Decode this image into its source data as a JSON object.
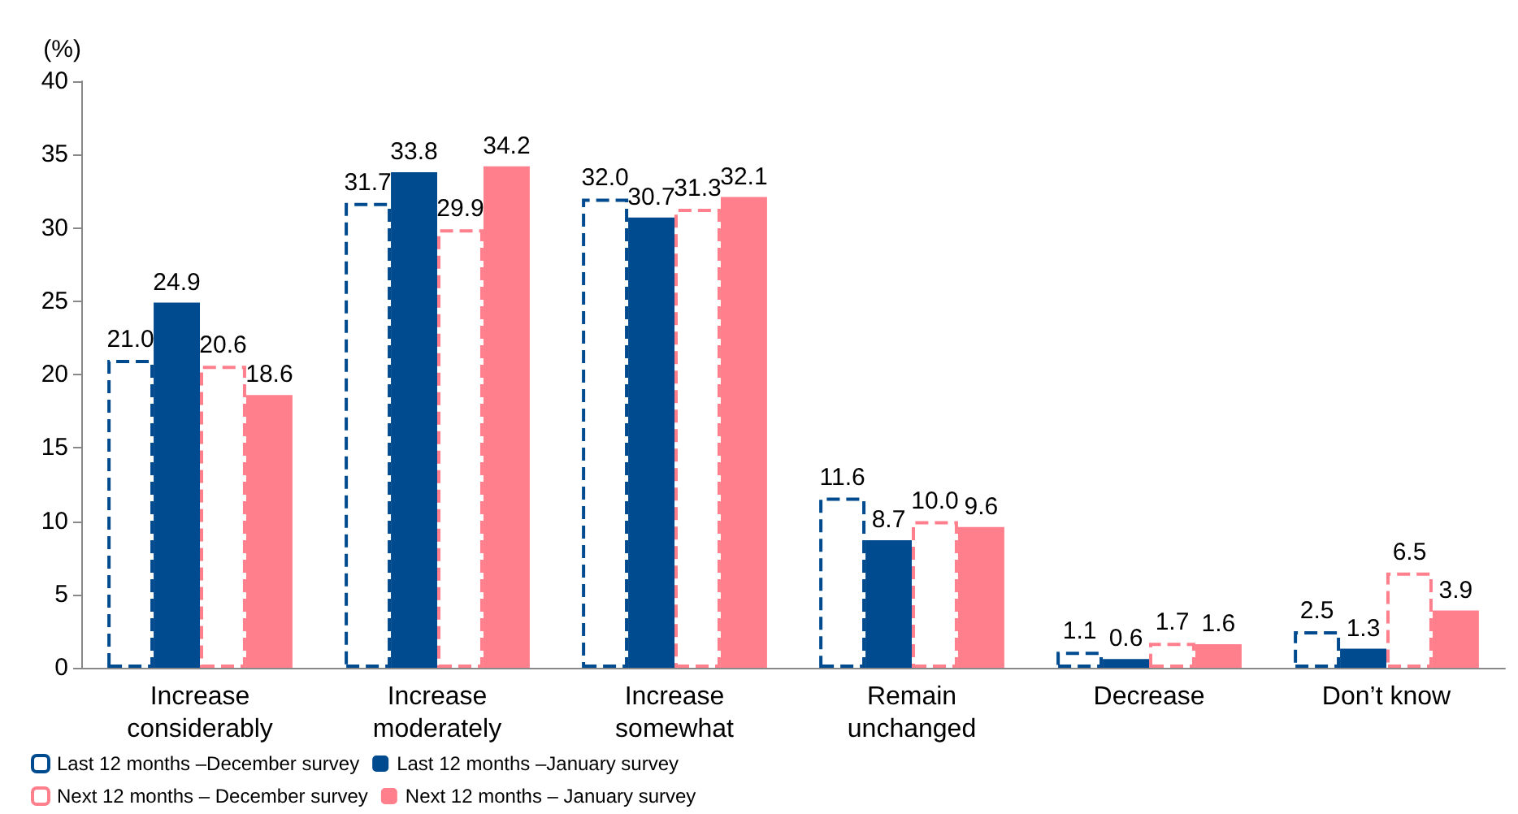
{
  "chart_data": {
    "type": "bar",
    "ylabel": "(%)",
    "categories": [
      "Increase\nconsiderably",
      "Increase\nmoderately",
      "Increase\nsomewhat",
      "Remain\nunchanged",
      "Decrease",
      "Don’t know"
    ],
    "series": [
      {
        "name": "Last 12 months –December survey",
        "color": "#004a8f",
        "line_style": "dashed",
        "values": [
          21.0,
          31.7,
          32.0,
          11.6,
          1.1,
          2.5
        ],
        "value_labels": [
          "21.0",
          "31.7",
          "32.0",
          "11.6",
          "1.1",
          "2.5"
        ]
      },
      {
        "name": "Last 12 months –January survey",
        "color": "#004a8f",
        "values": [
          24.9,
          33.8,
          30.7,
          8.7,
          0.6,
          1.3
        ],
        "value_labels": [
          "24.9",
          "33.8",
          "30.7",
          "8.7",
          "0.6",
          "1.3"
        ]
      },
      {
        "name": "Next 12 months – December survey",
        "color": "#ff7f8c",
        "line_style": "dashed",
        "values": [
          20.6,
          29.9,
          31.3,
          10.0,
          1.7,
          6.5
        ],
        "value_labels": [
          "20.6",
          "29.9",
          "31.3",
          "10.0",
          "1.7",
          "6.5"
        ]
      },
      {
        "name": "Next 12 months – January survey",
        "color": "#ff7f8c",
        "values": [
          18.6,
          34.2,
          32.1,
          9.6,
          1.6,
          3.9
        ],
        "value_labels": [
          "18.6",
          "34.2",
          "32.1",
          "9.6",
          "1.6",
          "3.9"
        ]
      }
    ],
    "ylim": [
      0,
      40
    ],
    "yticks": [
      0,
      5,
      10,
      15,
      20,
      25,
      30,
      35,
      40
    ],
    "grid": false,
    "legend": "bottom"
  }
}
